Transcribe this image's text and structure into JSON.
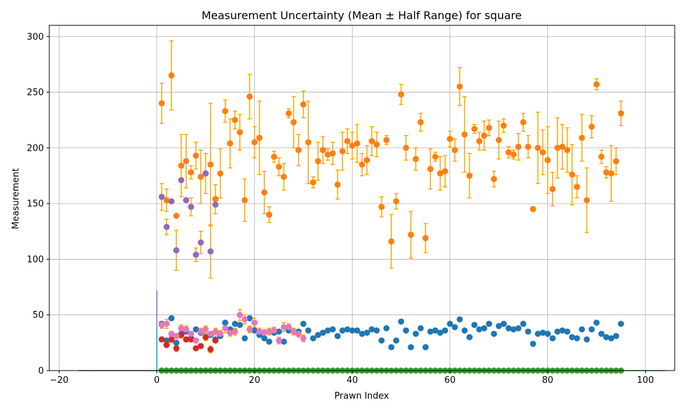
{
  "chart_data": {
    "type": "scatter",
    "title": "Measurement Uncertainty (Mean ± Half Range) for square",
    "xlabel": "Prawn Index",
    "ylabel": "Measurement",
    "xlim": [
      -22,
      106
    ],
    "ylim": [
      0,
      310
    ],
    "xticks": [
      -20,
      0,
      20,
      40,
      60,
      80,
      100
    ],
    "yticks": [
      0,
      50,
      100,
      150,
      200,
      250,
      300
    ],
    "grid": true,
    "error_color": "#FFA500",
    "series": [
      {
        "color": "#ff7f0e",
        "x": [
          1,
          2,
          3,
          4,
          5,
          6,
          7,
          8,
          9,
          10,
          11,
          12,
          13,
          14,
          15,
          16,
          17,
          18,
          19,
          20,
          21,
          22,
          23,
          24,
          25,
          26,
          27,
          28,
          29,
          30,
          31,
          32,
          33,
          34,
          35,
          36,
          37,
          38,
          39,
          40,
          41,
          42,
          43,
          44,
          45,
          46,
          47,
          48,
          49,
          50,
          51,
          52,
          53,
          54,
          55,
          56,
          57,
          58,
          59,
          60,
          61,
          62,
          63,
          64,
          65,
          66,
          67,
          68,
          69,
          70,
          71,
          72,
          73,
          74,
          75,
          76,
          77,
          78,
          79,
          80,
          81,
          82,
          83,
          84,
          85,
          86,
          87,
          88,
          89,
          90,
          91,
          92,
          93,
          94,
          95
        ],
        "y": [
          240,
          153,
          265,
          139,
          184,
          188,
          178,
          193,
          174,
          177,
          185,
          154,
          177,
          233,
          204,
          225,
          214,
          153,
          246,
          205,
          209,
          160,
          140,
          192,
          183,
          174,
          231,
          223,
          198,
          239,
          205,
          169,
          188,
          198,
          194,
          195,
          167,
          197,
          206,
          202,
          204,
          185,
          189,
          206,
          203,
          147,
          207,
          116,
          152,
          248,
          200,
          122,
          190,
          223,
          119,
          181,
          192,
          177,
          179,
          208,
          198,
          255,
          212,
          175,
          217,
          206,
          211,
          218,
          172,
          207,
          220,
          196,
          194,
          201,
          223,
          201,
          145,
          200,
          196,
          189,
          163,
          200,
          201,
          198,
          176,
          165,
          209,
          153,
          219,
          257,
          192,
          178,
          177,
          188,
          231
        ],
        "err": [
          18,
          10,
          31,
          0,
          28,
          24,
          6,
          12,
          24,
          18,
          55,
          13,
          22,
          10,
          22,
          8,
          16,
          19,
          20,
          14,
          33,
          19,
          7,
          5,
          8,
          12,
          4,
          23,
          14,
          12,
          37,
          5,
          17,
          12,
          5,
          10,
          13,
          17,
          11,
          12,
          17,
          10,
          13,
          13,
          11,
          9,
          4,
          24,
          7,
          9,
          11,
          21,
          10,
          8,
          13,
          18,
          4,
          15,
          14,
          7,
          10,
          17,
          34,
          20,
          4,
          8,
          13,
          7,
          7,
          17,
          6,
          5,
          4,
          12,
          8,
          10,
          2,
          32,
          20,
          30,
          15,
          27,
          20,
          20,
          27,
          10,
          21,
          29,
          10,
          5,
          6,
          5,
          25,
          12,
          11
        ]
      },
      {
        "color": "#9467bd",
        "x": [
          1,
          2,
          3,
          4,
          5,
          6,
          7,
          8,
          9,
          10,
          11,
          12
        ],
        "y": [
          156,
          129,
          152,
          108,
          171,
          153,
          147,
          104,
          115,
          177,
          107,
          149
        ],
        "err": [
          12,
          7,
          0,
          18,
          0,
          0,
          8,
          6,
          10,
          0,
          24,
          0
        ]
      },
      {
        "color": "#1f77b4",
        "x": [
          1,
          2,
          3,
          4,
          5,
          6,
          7,
          8,
          9,
          10,
          11,
          12,
          13,
          14,
          15,
          16,
          17,
          18,
          19,
          20,
          21,
          22,
          23,
          24,
          25,
          26,
          27,
          28,
          29,
          30,
          31,
          32,
          33,
          34,
          35,
          36,
          37,
          38,
          39,
          40,
          41,
          42,
          43,
          44,
          45,
          46,
          47,
          48,
          49,
          50,
          51,
          52,
          53,
          54,
          55,
          56,
          57,
          58,
          59,
          60,
          61,
          62,
          63,
          64,
          65,
          66,
          67,
          68,
          69,
          70,
          71,
          72,
          73,
          74,
          75,
          76,
          77,
          78,
          79,
          80,
          81,
          82,
          83,
          84,
          85,
          86,
          87,
          88,
          89,
          90,
          91,
          92,
          93,
          94,
          95
        ],
        "y": [
          42,
          27,
          47,
          25,
          33,
          35,
          29,
          37,
          34,
          30,
          32,
          28,
          31,
          43,
          37,
          42,
          41,
          29,
          47,
          36,
          32,
          29,
          26,
          34,
          35,
          26,
          36,
          35,
          35,
          42,
          36,
          29,
          32,
          34,
          36,
          37,
          31,
          36,
          37,
          36,
          36,
          33,
          34,
          37,
          36,
          27,
          38,
          21,
          27,
          44,
          36,
          21,
          33,
          38,
          21,
          35,
          36,
          34,
          36,
          42,
          39,
          46,
          36,
          30,
          41,
          37,
          38,
          42,
          33,
          40,
          42,
          38,
          37,
          38,
          42,
          35,
          24,
          33,
          34,
          33,
          29,
          35,
          36,
          35,
          30,
          29,
          37,
          28,
          37,
          43,
          33,
          30,
          29,
          31,
          42
        ]
      },
      {
        "color": "#d62728",
        "x": [
          1,
          2,
          3,
          4,
          5,
          6,
          7,
          8,
          9,
          10,
          11,
          12
        ],
        "y": [
          28,
          23,
          28,
          20,
          32,
          28,
          28,
          20,
          22,
          30,
          19,
          27
        ],
        "err": [
          2,
          2,
          3,
          3,
          3,
          2,
          2,
          2,
          2,
          3,
          3,
          2
        ]
      },
      {
        "color": "#e377c2",
        "x": [
          1,
          2,
          3,
          4,
          5,
          6,
          7,
          8,
          9,
          10,
          11,
          12,
          13,
          14,
          15,
          16,
          17,
          18,
          19,
          20,
          21,
          22,
          23,
          24,
          25,
          26,
          27,
          28,
          29,
          30
        ],
        "y": [
          41,
          42,
          33,
          31,
          38,
          37,
          33,
          27,
          35,
          37,
          33,
          35,
          33,
          38,
          34,
          35,
          50,
          46,
          37,
          43,
          35,
          34,
          35,
          36,
          27,
          39,
          39,
          35,
          33,
          29
        ],
        "err": [
          3,
          4,
          2,
          2,
          3,
          3,
          2,
          2,
          3,
          3,
          2,
          3,
          3,
          4,
          3,
          3,
          5,
          4,
          3,
          4,
          3,
          3,
          3,
          3,
          3,
          4,
          3,
          3,
          3,
          3
        ]
      },
      {
        "color": "#8c564b",
        "x": [
          1,
          2,
          3,
          4,
          5,
          6,
          7,
          8,
          9,
          10,
          11,
          12
        ],
        "y": [
          0,
          0,
          0,
          0,
          0,
          0,
          0,
          0,
          0,
          0,
          0,
          0
        ]
      },
      {
        "color": "#2ca02c",
        "x": [
          1,
          2,
          3,
          4,
          5,
          6,
          7,
          8,
          9,
          10,
          11,
          12,
          13,
          14,
          15,
          16,
          17,
          18,
          19,
          20,
          21,
          22,
          23,
          24,
          25,
          26,
          27,
          28,
          29,
          30,
          31,
          32,
          33,
          34,
          35,
          36,
          37,
          38,
          39,
          40,
          41,
          42,
          43,
          44,
          45,
          46,
          47,
          48,
          49,
          50,
          51,
          52,
          53,
          54,
          55,
          56,
          57,
          58,
          59,
          60,
          61,
          62,
          63,
          64,
          65,
          66,
          67,
          68,
          69,
          70,
          71,
          72,
          73,
          74,
          75,
          76,
          77,
          78,
          79,
          80,
          81,
          82,
          83,
          84,
          85,
          86,
          87,
          88,
          89,
          90,
          91,
          92,
          93,
          94,
          95
        ],
        "y": [
          0,
          0,
          0,
          0,
          0,
          0,
          0,
          0,
          0,
          0,
          0,
          0,
          0,
          0,
          0,
          0,
          0,
          0,
          0,
          0,
          0,
          0,
          0,
          0,
          0,
          0,
          0,
          0,
          0,
          0,
          0,
          0,
          0,
          0,
          0,
          0,
          0,
          0,
          0,
          0,
          0,
          0,
          0,
          0,
          0,
          0,
          0,
          0,
          0,
          0,
          0,
          0,
          0,
          0,
          0,
          0,
          0,
          0,
          0,
          0,
          0,
          0,
          0,
          0,
          0,
          0,
          0,
          0,
          0,
          0,
          0,
          0,
          0,
          0,
          0,
          0,
          0,
          0,
          0,
          0,
          0,
          0,
          0,
          0,
          0,
          0,
          0,
          0,
          0,
          0,
          0,
          0,
          0,
          0,
          0
        ]
      }
    ],
    "spikes": [
      {
        "x": 0,
        "y": 72,
        "color": "#9467bd"
      },
      {
        "x": 0,
        "y": 38,
        "color": "#17becf"
      }
    ],
    "baseline_segments": [
      {
        "x0": -16,
        "x1": 0,
        "color": "#8c564b"
      },
      {
        "x0": 0,
        "x1": 104,
        "color": "#2ca02c"
      }
    ]
  }
}
